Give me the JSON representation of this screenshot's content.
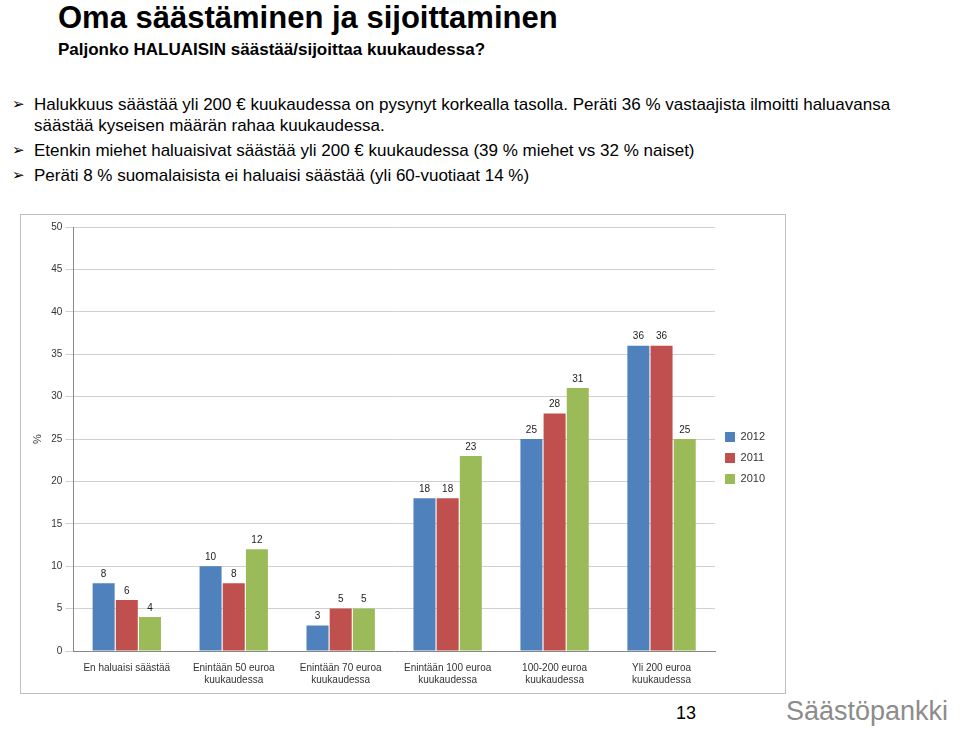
{
  "chart_data": {
    "type": "bar",
    "title": "Oma säästäminen ja sijoittaminen",
    "subtitle": "Paljonko HALUAISIN säästää/sijoittaa kuukaudessa?",
    "ylabel": "%",
    "categories": [
      "En haluaisi säästää",
      "Enintään 50 euroa kuukaudessa",
      "Enintään 70 euroa kuukaudessa",
      "Enintään 100 euroa kuukaudessa",
      "100-200 euroa kuukaudessa",
      "Yli 200 euroa kuukaudessa"
    ],
    "series": [
      {
        "name": "2012",
        "color": "#4f81bd",
        "values": [
          8,
          10,
          3,
          18,
          25,
          36
        ]
      },
      {
        "name": "2011",
        "color": "#c0504d",
        "values": [
          6,
          8,
          5,
          18,
          28,
          36
        ]
      },
      {
        "name": "2010",
        "color": "#9bbb59",
        "values": [
          4,
          12,
          5,
          23,
          31,
          25
        ]
      }
    ],
    "ylim": [
      0,
      50
    ],
    "yticks": [
      0,
      5,
      10,
      15,
      20,
      25,
      30,
      35,
      40,
      45,
      50
    ],
    "grid": true,
    "legend": "right",
    "data_labels": true
  },
  "slide": {
    "bullets": [
      "Halukkuus säästää yli 200 € kuukaudessa on pysynyt korkealla tasolla. Peräti 36 % vastaajista ilmoitti haluavansa säästää kyseisen määrän rahaa kuukaudessa.",
      "Etenkin miehet haluaisivat säästää yli 200 € kuukaudessa (39 % miehet vs 32 % naiset)",
      "Peräti 8 % suomalaisista ei haluaisi säästää (yli 60-vuotiaat 14 %)"
    ],
    "page": 13,
    "logo": "Säästöpankki"
  }
}
